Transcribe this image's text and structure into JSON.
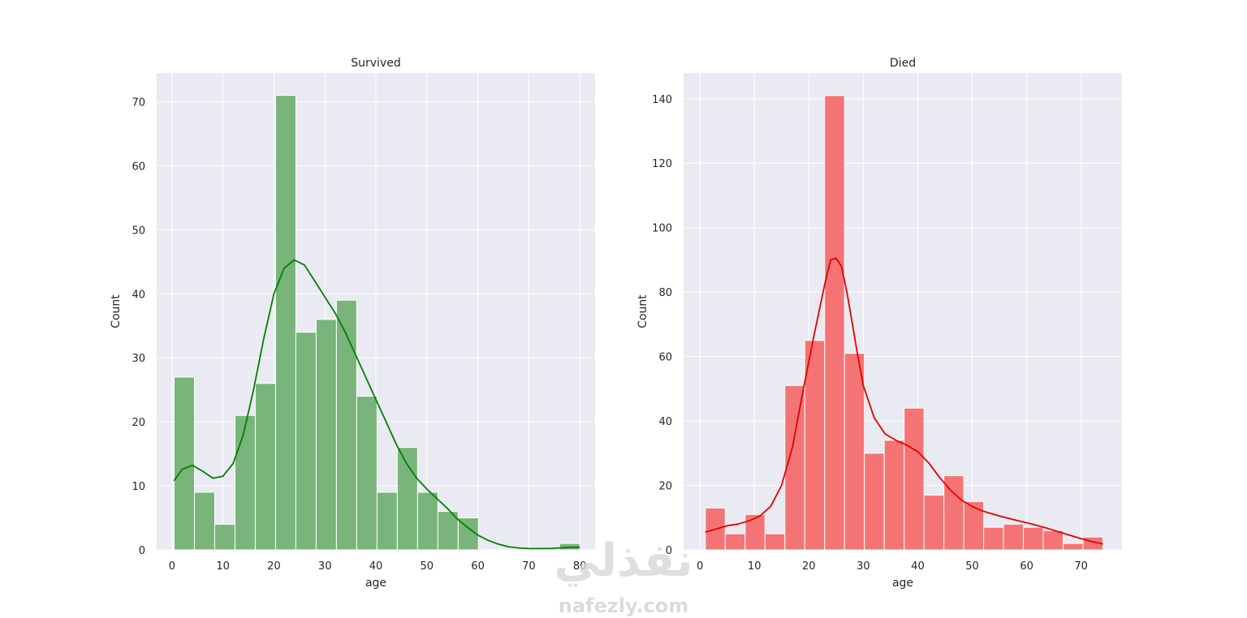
{
  "watermark": {
    "logo": "نفذلي",
    "url": "nafezly.com"
  },
  "chart_data": [
    {
      "type": "bar",
      "title": "Survived",
      "xlabel": "age",
      "ylabel": "Count",
      "xlim": [
        -3,
        83
      ],
      "ylim": [
        0,
        74.5
      ],
      "xticks": [
        0,
        10,
        20,
        30,
        40,
        50,
        60,
        70,
        80
      ],
      "yticks": [
        0,
        10,
        20,
        30,
        40,
        50,
        60,
        70
      ],
      "grid": true,
      "bar_color": "#79b47a",
      "bar_edge": "#ffffff",
      "kde_color": "#008000",
      "bin_edges": [
        0.42,
        4.4,
        8.38,
        12.36,
        16.34,
        20.32,
        24.3,
        28.28,
        32.26,
        36.24,
        40.22,
        44.2,
        48.18,
        52.16,
        56.14,
        60.12,
        64.1,
        68.08,
        72.06,
        76.04,
        80.0
      ],
      "counts": [
        27,
        9,
        4,
        21,
        26,
        71,
        34,
        36,
        39,
        24,
        9,
        16,
        9,
        6,
        5,
        0,
        0,
        0,
        0,
        1
      ],
      "kde": [
        [
          0.4,
          10.8
        ],
        [
          2,
          12.6
        ],
        [
          4,
          13.2
        ],
        [
          6,
          12.3
        ],
        [
          8,
          11.2
        ],
        [
          10,
          11.5
        ],
        [
          12,
          13.5
        ],
        [
          14,
          18
        ],
        [
          16,
          25
        ],
        [
          18,
          33
        ],
        [
          20,
          40
        ],
        [
          22,
          44
        ],
        [
          24,
          45.3
        ],
        [
          26,
          44.5
        ],
        [
          28,
          42
        ],
        [
          30,
          39.5
        ],
        [
          32,
          37
        ],
        [
          34,
          34
        ],
        [
          36,
          30.5
        ],
        [
          38,
          27
        ],
        [
          40,
          23.5
        ],
        [
          42,
          20
        ],
        [
          44,
          16.5
        ],
        [
          46,
          13.5
        ],
        [
          48,
          11.2
        ],
        [
          50,
          9.5
        ],
        [
          52,
          8
        ],
        [
          54,
          6.5
        ],
        [
          56,
          4.8
        ],
        [
          58,
          3.5
        ],
        [
          60,
          2.3
        ],
        [
          62,
          1.5
        ],
        [
          64,
          0.9
        ],
        [
          66,
          0.5
        ],
        [
          68,
          0.3
        ],
        [
          70,
          0.2
        ],
        [
          74,
          0.2
        ],
        [
          78,
          0.4
        ],
        [
          80,
          0.4
        ]
      ]
    },
    {
      "type": "bar",
      "title": "Died",
      "xlabel": "age",
      "ylabel": "Count",
      "xlim": [
        -3,
        77.5
      ],
      "ylim": [
        0,
        148
      ],
      "xticks": [
        0,
        10,
        20,
        30,
        40,
        50,
        60,
        70
      ],
      "yticks": [
        0,
        20,
        40,
        60,
        80,
        100,
        120,
        140
      ],
      "grid": true,
      "bar_color": "#f47476",
      "bar_edge": "#ffffff",
      "kde_color": "#e50000",
      "bin_edges": [
        1.0,
        4.65,
        8.3,
        11.95,
        15.6,
        19.25,
        22.9,
        26.55,
        30.2,
        33.85,
        37.5,
        41.15,
        44.8,
        48.45,
        52.1,
        55.75,
        59.4,
        63.05,
        66.7,
        70.35,
        74.0
      ],
      "counts": [
        13,
        5,
        11,
        5,
        51,
        65,
        141,
        61,
        30,
        34,
        44,
        17,
        23,
        15,
        7,
        8,
        7,
        6,
        2,
        4
      ],
      "kde": [
        [
          1,
          5.5
        ],
        [
          3,
          6.5
        ],
        [
          5,
          7.5
        ],
        [
          7,
          8
        ],
        [
          9,
          9
        ],
        [
          11,
          10.5
        ],
        [
          13,
          13.5
        ],
        [
          15,
          20
        ],
        [
          17,
          32
        ],
        [
          19,
          50
        ],
        [
          21,
          67
        ],
        [
          23,
          83
        ],
        [
          24,
          90
        ],
        [
          25,
          90.5
        ],
        [
          26,
          88
        ],
        [
          27,
          80
        ],
        [
          28,
          70
        ],
        [
          29,
          60
        ],
        [
          30,
          51
        ],
        [
          32,
          41
        ],
        [
          34,
          36
        ],
        [
          36,
          34
        ],
        [
          38,
          32.5
        ],
        [
          40,
          30.5
        ],
        [
          42,
          27
        ],
        [
          44,
          22.5
        ],
        [
          46,
          18.5
        ],
        [
          48,
          15.5
        ],
        [
          50,
          13.5
        ],
        [
          52,
          12
        ],
        [
          55,
          10.5
        ],
        [
          58,
          9.2
        ],
        [
          61,
          8
        ],
        [
          64,
          6.6
        ],
        [
          67,
          5
        ],
        [
          70,
          3.5
        ],
        [
          72,
          2.6
        ],
        [
          74,
          1.8
        ]
      ]
    }
  ]
}
